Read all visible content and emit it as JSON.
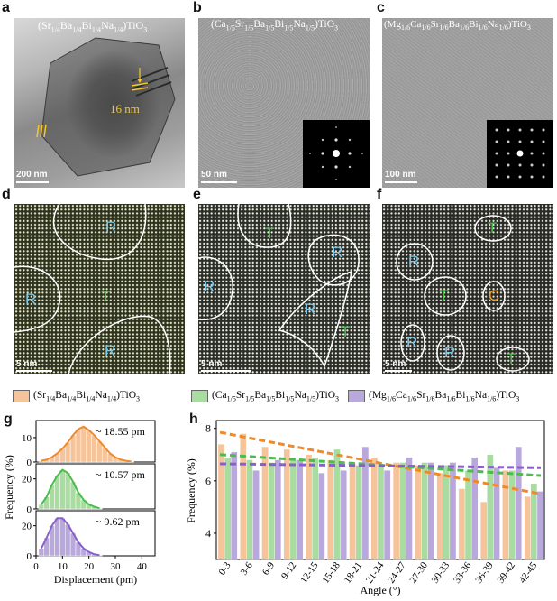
{
  "panels": {
    "a": {
      "label": "a",
      "title_html": "(Sr<sub>1/4</sub>Ba<sub>1/4</sub>Bi<sub>1/4</sub>Na<sub>1/4</sub>)TiO<sub>3</sub>",
      "annotation": "16 nm",
      "scale": "200 nm"
    },
    "b": {
      "label": "b",
      "title_html": "(Ca<sub>1/5</sub>Sr<sub>1/5</sub>Ba<sub>1/5</sub>Bi<sub>1/5</sub>Na<sub>1/5</sub>)TiO<sub>3</sub>",
      "scale": "50 nm"
    },
    "c": {
      "label": "c",
      "title_html": "(Mg<sub>1/6</sub>Ca<sub>1/6</sub>Sr<sub>1/6</sub>Ba<sub>1/6</sub>Bi<sub>1/6</sub>Na<sub>1/6</sub>)TiO<sub>3</sub>",
      "scale": "100 nm"
    },
    "d": {
      "label": "d",
      "scale": "5 nm",
      "regions": [
        "R",
        "R",
        "T",
        "R"
      ]
    },
    "e": {
      "label": "e",
      "scale": "5 nm",
      "regions": [
        "T",
        "R",
        "R",
        "R",
        "T"
      ]
    },
    "f": {
      "label": "f",
      "scale": "5 nm",
      "regions": [
        "T",
        "R",
        "T",
        "C",
        "R",
        "R",
        "T"
      ]
    },
    "g": {
      "label": "g"
    },
    "h": {
      "label": "h"
    }
  },
  "colors": {
    "orange": "#f5c49a",
    "orange_line": "#f08a28",
    "green": "#a8dca0",
    "green_line": "#4cbc4c",
    "purple": "#b8a8dc",
    "purple_line": "#8860c8",
    "region_R": "#7ec8e8",
    "region_T": "#4cbc4c",
    "region_C": "#f0a020"
  },
  "legend": [
    {
      "text_html": "(Sr<sub>1/4</sub>Ba<sub>1/4</sub>Bi<sub>1/4</sub>Na<sub>1/4</sub>)TiO<sub>3</sub>",
      "color": "#f5c49a"
    },
    {
      "text_html": "(Ca<sub>1/5</sub>Sr<sub>1/5</sub>Ba<sub>1/5</sub>Bi<sub>1/5</sub>Na<sub>1/5</sub>)TiO<sub>3</sub>",
      "color": "#a8dca0"
    },
    {
      "text_html": "(Mg<sub>1/6</sub>Ca<sub>1/6</sub>Sr<sub>1/6</sub>Ba<sub>1/6</sub>Bi<sub>1/6</sub>Na<sub>1/6</sub>)TiO<sub>3</sub>",
      "color": "#b8a8dc"
    }
  ],
  "chart_data": [
    {
      "type": "bar",
      "panel": "g",
      "xlabel": "Displacement (pm)",
      "ylabel": "Frequency (%)",
      "xlim": [
        0,
        45
      ],
      "xticks": [
        "0",
        "10",
        "20",
        "30",
        "40"
      ],
      "subplots": [
        {
          "annotation": "~ 18.55 pm",
          "yticks": [
            "0",
            "10"
          ],
          "ylim": [
            0,
            17
          ],
          "bin_width": 2,
          "bins": [
            2,
            4,
            6,
            8,
            10,
            12,
            14,
            16,
            18,
            20,
            22,
            24,
            26,
            28,
            30,
            32,
            34,
            36
          ],
          "values": [
            0.5,
            1,
            2,
            3.5,
            5.5,
            8,
            11,
            13.5,
            14.5,
            13,
            11,
            8.5,
            6,
            3.5,
            2,
            1,
            0.5,
            0.2
          ]
        },
        {
          "annotation": "~ 10.57 pm",
          "yticks": [
            "0",
            "20"
          ],
          "ylim": [
            0,
            30
          ],
          "bin_width": 2,
          "bins": [
            2,
            4,
            6,
            8,
            10,
            12,
            14,
            16,
            18,
            20,
            22,
            24
          ],
          "values": [
            3,
            8,
            16,
            22,
            26,
            24,
            18,
            11,
            6,
            3,
            1.5,
            0.5
          ]
        },
        {
          "annotation": "~ 9.62 pm",
          "yticks": [
            "0",
            "20"
          ],
          "ylim": [
            0,
            30
          ],
          "bin_width": 2,
          "bins": [
            2,
            4,
            6,
            8,
            10,
            12,
            14,
            16,
            18,
            20,
            22,
            24
          ],
          "values": [
            5,
            12,
            20,
            25,
            25,
            21,
            15,
            9,
            5,
            2.5,
            1,
            0.5
          ]
        }
      ]
    },
    {
      "type": "bar",
      "panel": "h",
      "xlabel": "Angle (°)",
      "ylabel": "Frequency (%)",
      "ylim": [
        3,
        8.3
      ],
      "yticks": [
        "4",
        "6",
        "8"
      ],
      "categories": [
        "0-3",
        "3-6",
        "6-9",
        "9-12",
        "12-15",
        "15-18",
        "18-21",
        "21-24",
        "24-27",
        "27-30",
        "30-33",
        "33-36",
        "36-39",
        "39-42",
        "42-45"
      ],
      "series": [
        {
          "values": [
            7.4,
            7.8,
            7.3,
            7.2,
            7.0,
            6.8,
            6.7,
            6.9,
            6.7,
            6.6,
            6.3,
            5.7,
            5.2,
            6.4,
            5.4
          ]
        },
        {
          "values": [
            6.9,
            6.8,
            6.7,
            6.8,
            6.9,
            7.2,
            6.6,
            6.6,
            6.7,
            6.7,
            6.6,
            6.4,
            7.0,
            6.4,
            5.9
          ]
        },
        {
          "values": [
            7.1,
            6.4,
            6.8,
            6.8,
            6.3,
            6.4,
            7.3,
            6.4,
            6.9,
            6.7,
            6.7,
            6.9,
            6.5,
            7.3,
            5.6
          ]
        }
      ],
      "trend_lines": [
        {
          "from": 7.85,
          "to": 5.5
        },
        {
          "from": 7.0,
          "to": 6.2
        },
        {
          "from": 6.65,
          "to": 6.5
        }
      ]
    }
  ]
}
